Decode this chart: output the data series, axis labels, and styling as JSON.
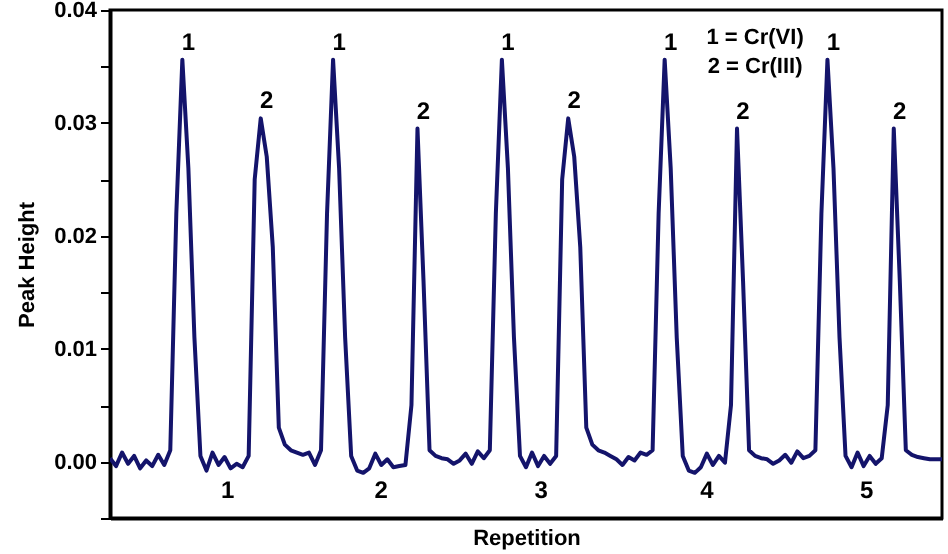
{
  "chart_data": {
    "type": "line",
    "xlabel": "Repetition",
    "ylabel": "Peak Height",
    "categories": [
      null,
      null,
      null,
      null,
      null,
      null,
      null,
      null,
      null,
      null,
      null,
      null,
      null,
      null,
      null,
      null,
      null,
      null,
      null,
      null,
      null,
      null,
      null,
      null,
      null,
      null,
      null,
      null,
      null,
      null,
      null,
      null,
      null,
      null,
      null,
      null,
      null,
      null,
      null,
      null,
      null,
      null,
      null,
      null,
      null,
      null,
      null,
      null,
      null,
      null,
      null,
      null,
      null,
      null,
      null,
      null,
      null,
      null,
      null,
      null,
      null,
      null,
      null,
      null,
      null,
      null,
      null,
      null,
      null,
      null,
      null,
      null,
      null,
      null,
      null,
      null,
      null,
      null,
      null,
      null,
      null,
      null,
      null,
      null,
      null,
      null,
      null,
      null,
      null,
      null,
      null,
      null,
      null,
      null,
      null,
      null,
      null,
      null,
      null,
      null,
      null,
      null,
      null,
      null,
      null,
      null,
      null,
      null,
      null,
      null,
      null,
      null,
      null,
      null,
      null,
      null,
      null,
      null,
      null,
      null,
      null,
      null,
      null,
      null,
      null,
      null,
      null,
      null,
      null,
      null,
      null,
      null,
      null,
      null,
      null,
      null,
      null,
      null,
      null
    ],
    "series": [
      {
        "color": "#14146b",
        "values": [
          0.0003,
          -0.0004,
          0.0008,
          -0.0002,
          0.0005,
          -0.0006,
          0.0001,
          -0.0004,
          0.0006,
          -0.0003,
          0.001,
          0.022,
          0.0356,
          0.026,
          0.011,
          0.0005,
          -0.0008,
          0.0008,
          -0.0003,
          0.0004,
          -0.0006,
          -0.0002,
          -0.0005,
          0.0005,
          0.025,
          0.0304,
          0.027,
          0.019,
          0.003,
          0.0015,
          0.001,
          0.0008,
          0.0006,
          0.0008,
          -0.0003,
          0.001,
          0.022,
          0.0356,
          0.026,
          0.011,
          0.0005,
          -0.0008,
          -0.001,
          -0.0006,
          0.0007,
          -0.0003,
          0.0002,
          -0.0005,
          -0.0004,
          -0.0003,
          0.005,
          0.0295,
          0.016,
          0.001,
          0.0005,
          0.0003,
          0.0002,
          -0.0002,
          0.0001,
          0.0007,
          -0.0002,
          0.0009,
          0.0003,
          0.001,
          0.022,
          0.0356,
          0.026,
          0.011,
          0.0005,
          -0.0005,
          0.0008,
          -0.0004,
          0.0005,
          -0.0002,
          0.0005,
          0.025,
          0.0304,
          0.027,
          0.019,
          0.003,
          0.0015,
          0.001,
          0.0008,
          0.0005,
          0.0002,
          -0.0003,
          0.0004,
          0.0001,
          0.0008,
          0.0006,
          0.001,
          0.022,
          0.0356,
          0.026,
          0.011,
          0.0005,
          -0.0008,
          -0.001,
          -0.0005,
          0.0007,
          -0.0003,
          0.0005,
          -0.0001,
          0.005,
          0.0295,
          0.016,
          0.001,
          0.0005,
          0.0003,
          0.0002,
          -0.0002,
          0.0001,
          0.0006,
          -0.0001,
          0.0009,
          0.0003,
          0.0005,
          0.001,
          0.022,
          0.0356,
          0.026,
          0.011,
          0.0005,
          -0.0005,
          0.0008,
          -0.0004,
          0.0005,
          -0.0002,
          0.0003,
          0.005,
          0.0295,
          0.016,
          0.001,
          0.0006,
          0.0004,
          0.0003,
          0.0002,
          0.0002,
          0.0002
        ]
      }
    ],
    "ylim": [
      -0.005,
      0.04
    ],
    "yticks": [
      {
        "value": -0.005,
        "label": null
      },
      {
        "value": 0,
        "label": "0.00"
      },
      {
        "value": 0.005,
        "label": null
      },
      {
        "value": 0.01,
        "label": "0.01"
      },
      {
        "value": 0.015,
        "label": null
      },
      {
        "value": 0.02,
        "label": "0.02"
      },
      {
        "value": 0.025,
        "label": null
      },
      {
        "value": 0.03,
        "label": "0.03"
      },
      {
        "value": 0.035,
        "label": null
      },
      {
        "value": 0.04,
        "label": "0.04"
      }
    ],
    "tick_labels": "y",
    "grid": false,
    "annotations": [
      {
        "text": "1",
        "y": 0.0356
      },
      {
        "text": "2",
        "y": 0.0304
      },
      {
        "text": "1",
        "y": 0.0356
      },
      {
        "text": "2",
        "y": 0.0295
      },
      {
        "text": "1",
        "y": 0.0356
      },
      {
        "text": "2",
        "y": 0.0304
      },
      {
        "text": "1",
        "y": 0.0356
      },
      {
        "text": "2",
        "y": 0.0295
      },
      {
        "text": "1",
        "y": 0.0356
      },
      {
        "text": "2",
        "y": 0.0295
      },
      "1",
      "2",
      "3",
      "4",
      "5",
      "1 = Cr(VI)",
      "2 = Cr(III)"
    ]
  }
}
